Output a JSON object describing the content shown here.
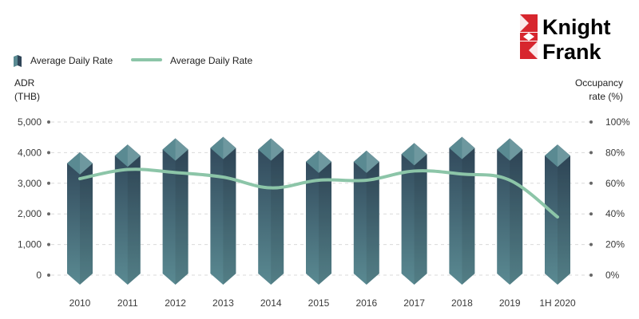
{
  "brand": {
    "line1": "Knight",
    "line2": "Frank",
    "color": "#d7262e"
  },
  "legend": {
    "bar_label": "Average Daily Rate",
    "line_label": "Average Daily Rate",
    "position": "top-left"
  },
  "colors": {
    "bar_top": "#2f4558",
    "bar_bottom": "#5a8a92",
    "line": "#8cc5a8",
    "grid": "#dadada"
  },
  "chart_data": {
    "type": "bar",
    "categories": [
      "2010",
      "2011",
      "2012",
      "2013",
      "2014",
      "2015",
      "2016",
      "2017",
      "2018",
      "2019",
      "1H 2020"
    ],
    "series": [
      {
        "name": "Average Daily Rate",
        "type": "bar",
        "axis": "left",
        "values": [
          3650,
          3900,
          4100,
          4150,
          4100,
          3700,
          3700,
          3950,
          4150,
          4100,
          3900
        ]
      },
      {
        "name": "Average Daily Rate",
        "type": "line",
        "axis": "right",
        "values": [
          63,
          69,
          67,
          64,
          57,
          62,
          62,
          68,
          66,
          62,
          38
        ]
      }
    ],
    "y_left": {
      "title_lines": [
        "ADR",
        "(THB)"
      ],
      "ticks": [
        "0",
        "1,000",
        "2,000",
        "3,000",
        "4,000",
        "5,000"
      ],
      "ylim": [
        0,
        5000
      ]
    },
    "y_right": {
      "title_lines": [
        "Occupancy",
        "rate (%)"
      ],
      "ticks": [
        "0%",
        "20%",
        "40%",
        "60%",
        "80%",
        "100%"
      ],
      "ylim": [
        0,
        100
      ]
    },
    "grid": true
  }
}
